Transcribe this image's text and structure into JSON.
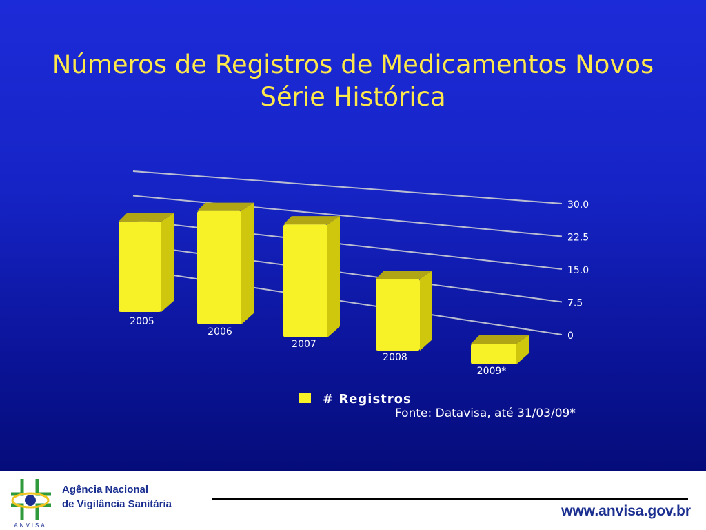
{
  "slide": {
    "title_line1": "Números de Registros de Medicamentos Novos",
    "title_line2": "Série Histórica",
    "source_note": "Fonte: Datavisa, até 31/03/09*"
  },
  "colors": {
    "bar_front": "#f7f227",
    "bar_side": "#cfc60e",
    "bar_top": "#b0a615",
    "title": "#ffe94a",
    "accent_blue": "#1a2f8f"
  },
  "chart_data": {
    "type": "bar",
    "categories": [
      "2005",
      "2006",
      "2007",
      "2008",
      "2009*"
    ],
    "series": [
      {
        "name": "# Registros",
        "values": [
          29,
          33,
          32,
          19,
          5
        ]
      }
    ],
    "y_ticks": [
      "0",
      "7.5",
      "15.0",
      "22.5",
      "30.0"
    ],
    "ylim": [
      0,
      30
    ],
    "grid": true,
    "legend_position": "bottom",
    "style": "3d"
  },
  "footer": {
    "agency_line1": "Agência Nacional",
    "agency_line2": "de Vigilância Sanitária",
    "logo_text": "ANVISA",
    "website": "www.anvisa.gov.br"
  }
}
